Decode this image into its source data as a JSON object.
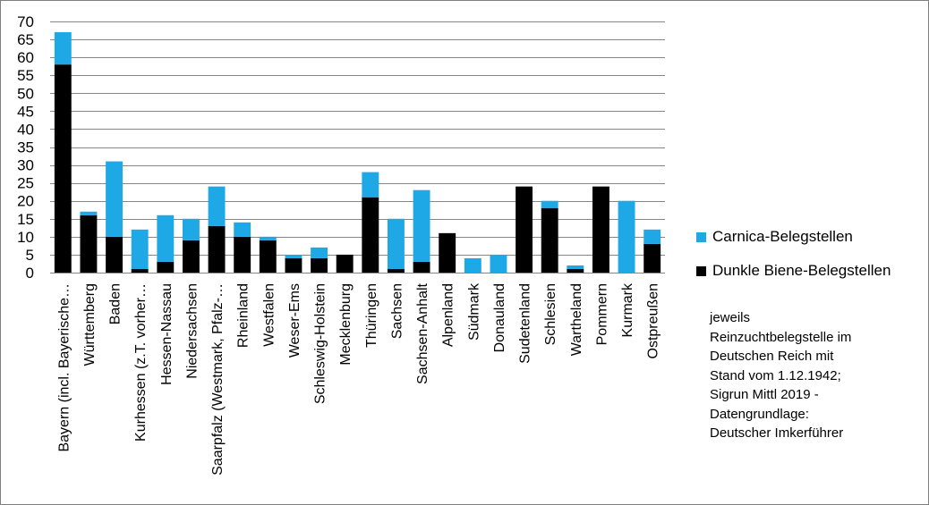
{
  "chart_data": {
    "type": "bar",
    "stacked": true,
    "categories": [
      "Bayern (incl. Bayerische…",
      "Württemberg",
      "Baden",
      "Kurhessen (z.T. vorher…",
      "Hessen-Nassau",
      "Niedersachsen",
      "Saarpfalz (Westmark, Pfalz-…",
      "Rheinland",
      "Westfalen",
      "Weser-Ems",
      "Schleswig-Holstein",
      "Mecklenburg",
      "Thüringen",
      "Sachsen",
      "Sachsen-Anhalt",
      "Alpenland",
      "Südmark",
      "Donauland",
      "Sudetenland",
      "Schlesien",
      "Wartheland",
      "Pommern",
      "Kurmark",
      "Ostpreußen"
    ],
    "series": [
      {
        "name": "Dunkle Biene-Belegstellen",
        "color": "#000000",
        "values": [
          58,
          16,
          10,
          1,
          3,
          9,
          13,
          10,
          9,
          4,
          4,
          5,
          21,
          1,
          3,
          11,
          0,
          0,
          24,
          18,
          1,
          24,
          0,
          8
        ]
      },
      {
        "name": "Carnica-Belegstellen",
        "color": "#1FA8E6",
        "values": [
          9,
          1,
          21,
          11,
          13,
          6,
          11,
          4,
          1,
          1,
          3,
          0,
          7,
          14,
          20,
          0,
          4,
          5,
          0,
          2,
          1,
          0,
          20,
          4
        ]
      }
    ],
    "ylim": [
      0,
      70
    ],
    "yticks": [
      0,
      5,
      10,
      15,
      20,
      25,
      30,
      35,
      40,
      45,
      50,
      55,
      60,
      65,
      70
    ],
    "grid": true,
    "legend_position": "right"
  },
  "legend": {
    "carnica": "Carnica-Belegstellen",
    "dunkle": "Dunkle Biene-Belegstellen"
  },
  "note": {
    "line1": "jeweils",
    "line2": "Reinzuchtbelegstelle im",
    "line3": "Deutschen Reich mit",
    "line4": "Stand vom 1.12.1942;",
    "line5": "Sigrun Mittl 2019 -",
    "line6": "Datengrundlage:",
    "line7": "Deutscher Imkerführer"
  },
  "colors": {
    "carnica": "#1FA8E6",
    "dunkle": "#000000",
    "grid": "#868686"
  }
}
